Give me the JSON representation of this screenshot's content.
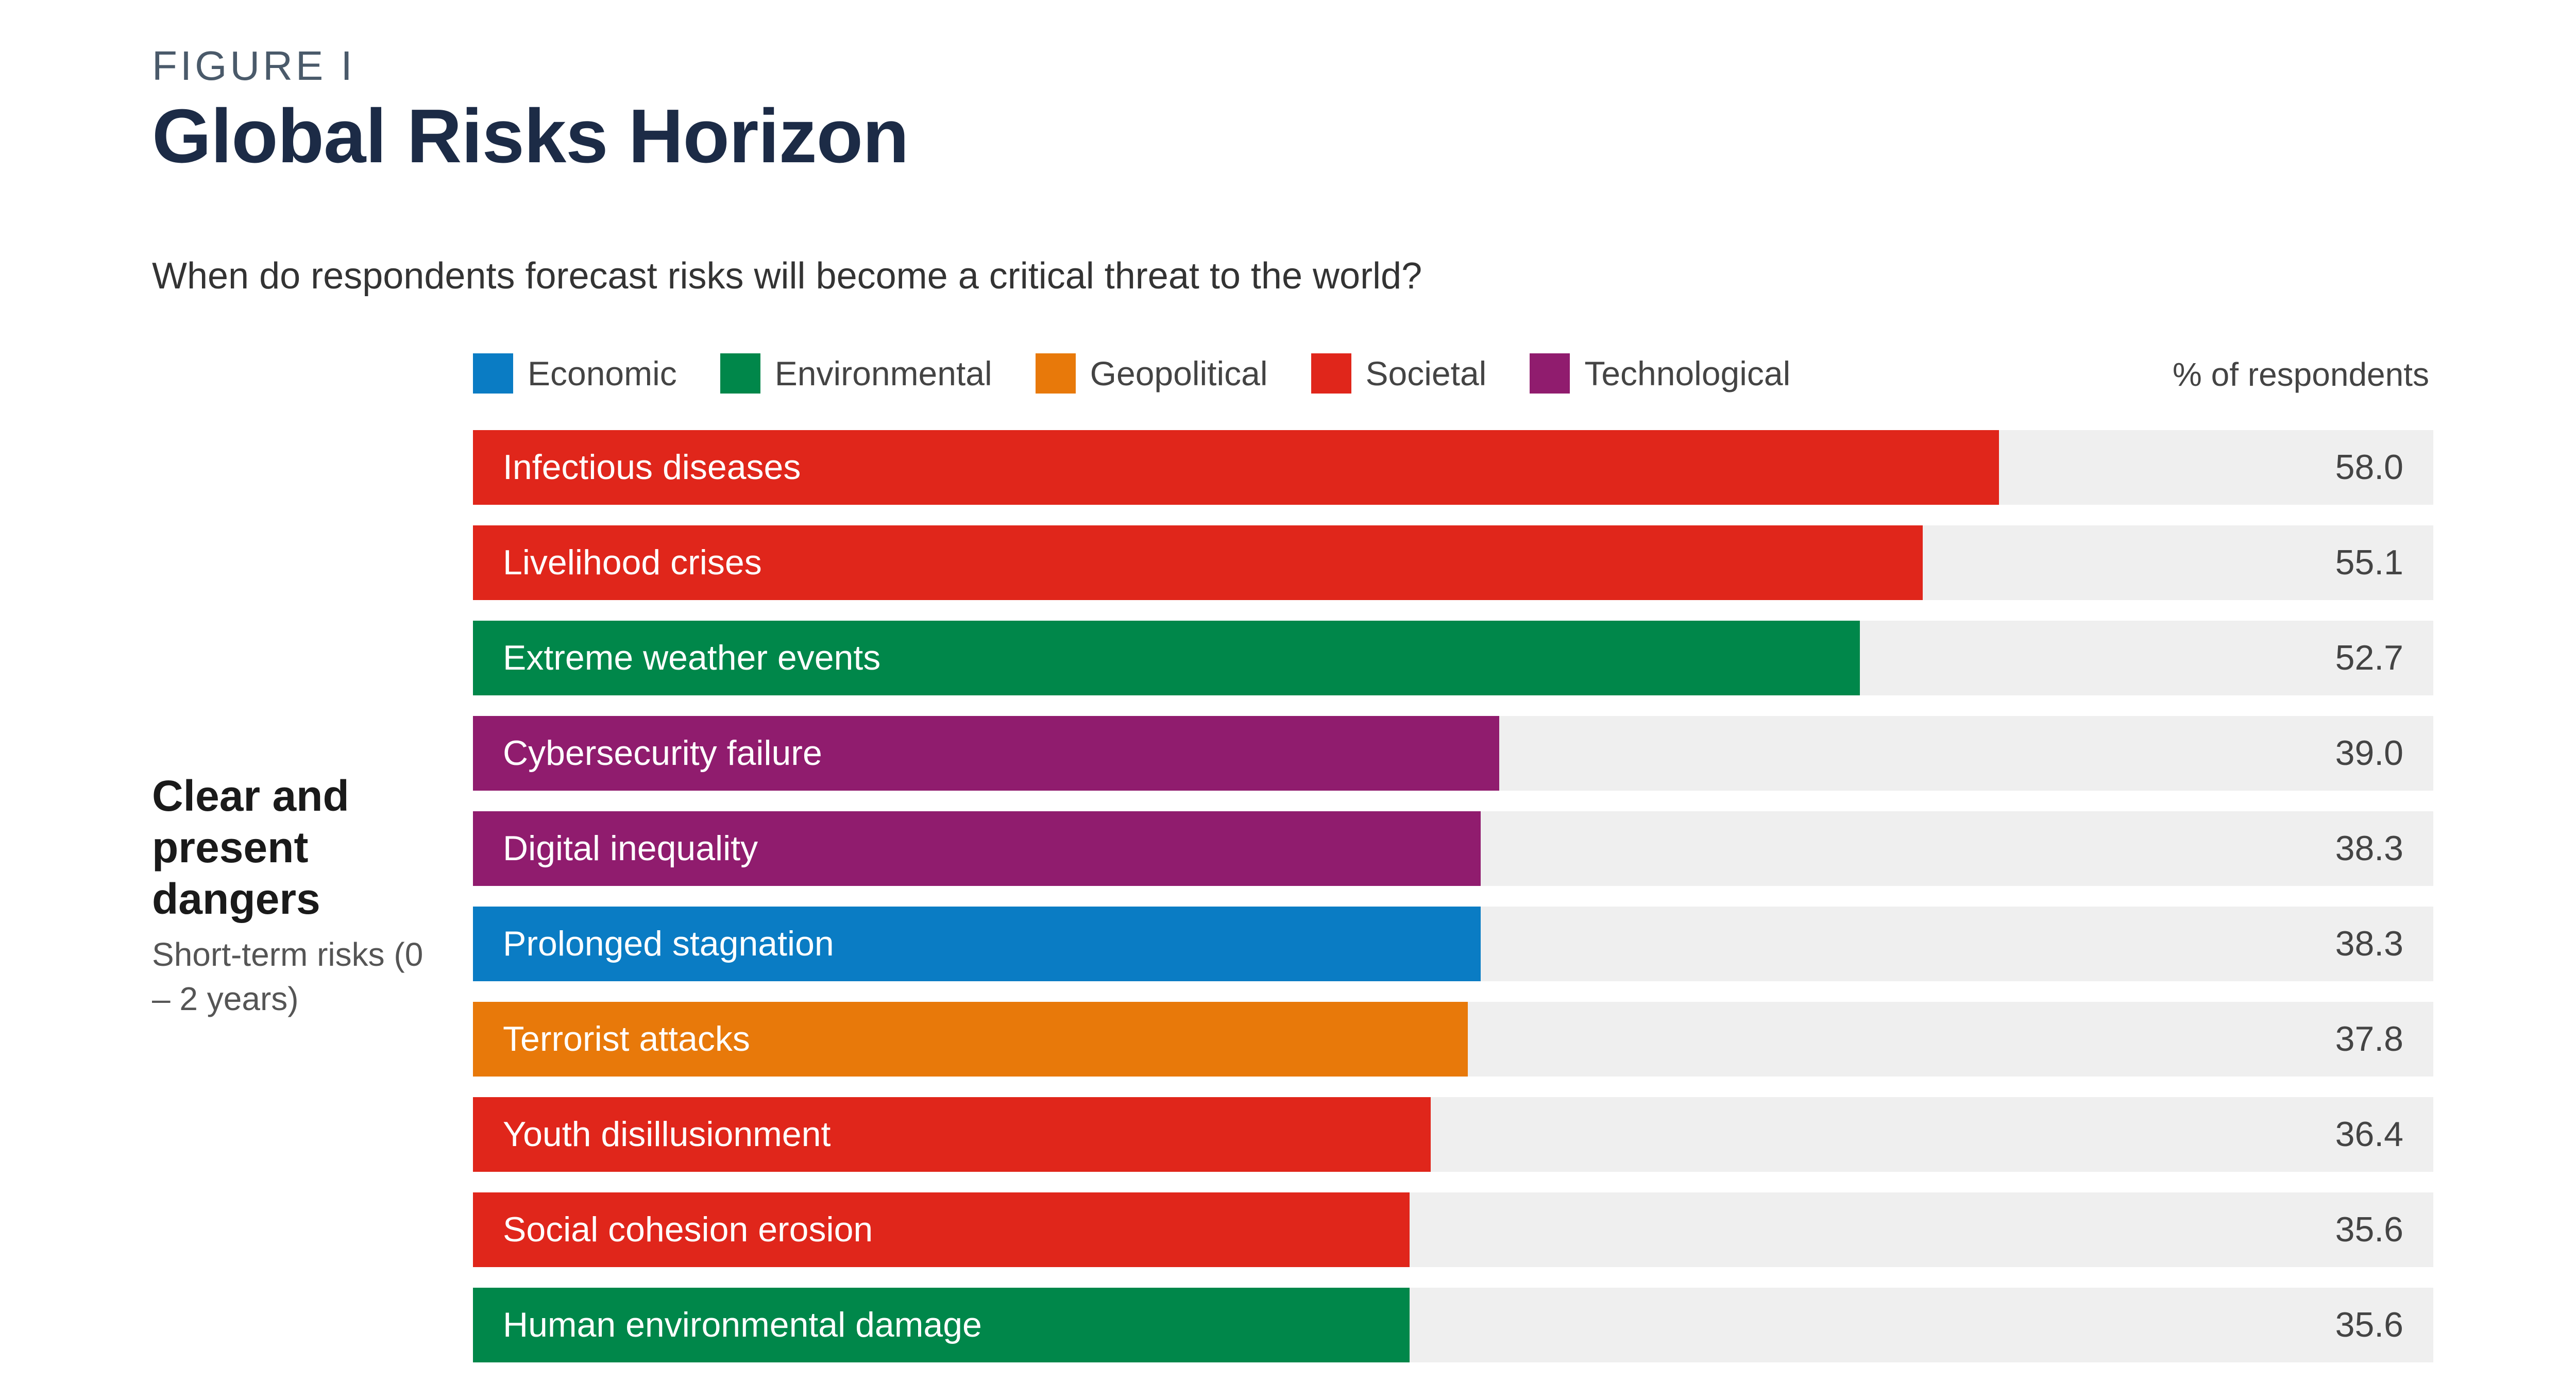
{
  "figure": {
    "label": "FIGURE I",
    "title": "Global Risks Horizon",
    "question": "When do respondents forecast risks will become a critical threat to the world?",
    "value_header": "% of respondents"
  },
  "section": {
    "heading": "Clear and present dangers",
    "subheading": "Short-term risks (0 – 2 years)"
  },
  "colors": {
    "Economic": "#0a7cc4",
    "Environmental": "#00874a",
    "Geopolitical": "#e8790a",
    "Societal": "#e0261b",
    "Technological": "#901c6e",
    "track": "#efefef"
  },
  "chart_data": {
    "type": "bar",
    "orientation": "horizontal",
    "title": "Global Risks Horizon",
    "subtitle": "When do respondents forecast risks will become a critical threat to the world?",
    "value_label": "% of respondents",
    "xlim": [
      0,
      74.5
    ],
    "legend": [
      "Economic",
      "Environmental",
      "Geopolitical",
      "Societal",
      "Technological"
    ],
    "legend_position": "top",
    "categories": [
      "Infectious diseases",
      "Livelihood crises",
      "Extreme weather events",
      "Cybersecurity failure",
      "Digital inequality",
      "Prolonged stagnation",
      "Terrorist attacks",
      "Youth disillusionment",
      "Social cohesion erosion",
      "Human environmental damage"
    ],
    "values": [
      58.0,
      55.1,
      52.7,
      39.0,
      38.3,
      38.3,
      37.8,
      36.4,
      35.6,
      35.6
    ],
    "value_labels": [
      "58.0",
      "55.1",
      "52.7",
      "39.0",
      "38.3",
      "38.3",
      "37.8",
      "36.4",
      "35.6",
      "35.6"
    ],
    "category_groups": [
      "Societal",
      "Societal",
      "Environmental",
      "Technological",
      "Technological",
      "Economic",
      "Geopolitical",
      "Societal",
      "Societal",
      "Environmental"
    ]
  }
}
